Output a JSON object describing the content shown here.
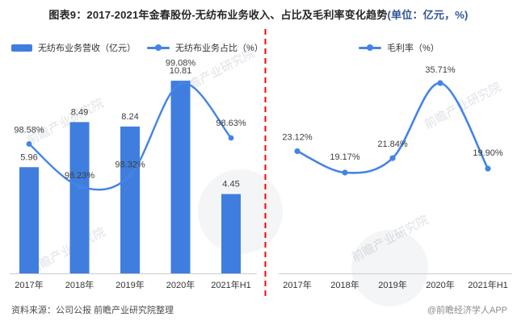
{
  "title": {
    "text": "图表9：2017-2021年金春股份-无纺布业务收入、占比及毛利率变化趋势",
    "unit_suffix": "(单位：亿元，%)"
  },
  "legend": {
    "revenue": "无纺布业务营收（亿元）",
    "share": "无纺布业务占比（%）",
    "margin": "毛利率（%）"
  },
  "footer": {
    "source": "资料来源：公司公报 前瞻产业研究院整理",
    "credit": "@前瞻经济学人APP"
  },
  "watermark": {
    "text": "前瞻产业研究院"
  },
  "colors": {
    "bar": "#3F7EDE",
    "line": "#4384E6",
    "divider": "#FE0000",
    "axis": "#CCCCCC",
    "label": "#3D3D3D",
    "tick": "#333333",
    "title": "#262626",
    "unit": "#2F5496"
  },
  "chart_data": [
    {
      "type": "bar",
      "title": "无纺布业务收入及占比",
      "categories": [
        "2017年",
        "2018年",
        "2019年",
        "2020年",
        "2021年H1"
      ],
      "series": [
        {
          "name": "无纺布业务营收（亿元）",
          "type": "bar",
          "values": [
            5.96,
            8.49,
            8.24,
            10.81,
            4.45
          ],
          "labels": [
            "5.96",
            "8.49",
            "8.24",
            "10.81",
            "4.45"
          ]
        },
        {
          "name": "无纺布业务占比（%）",
          "type": "line",
          "values": [
            98.58,
            98.23,
            98.32,
            99.08,
            98.63
          ],
          "labels": [
            "98.58%",
            "98.23%",
            "98.32%",
            "99.08%",
            "98.63%"
          ]
        }
      ],
      "xlabel": "",
      "ylabel": "",
      "ylim": [
        0,
        12
      ],
      "y2lim": [
        97.5,
        99.5
      ],
      "grid": false,
      "legend_position": "top"
    },
    {
      "type": "line",
      "title": "毛利率变化趋势",
      "categories": [
        "2017年",
        "2018年",
        "2019年",
        "2020年",
        "2021年H1"
      ],
      "series": [
        {
          "name": "毛利率（%）",
          "type": "line",
          "values": [
            23.12,
            19.17,
            21.84,
            35.71,
            19.9
          ],
          "labels": [
            "23.12%",
            "19.17%",
            "21.84%",
            "35.71%",
            "19.90%"
          ]
        }
      ],
      "xlabel": "",
      "ylabel": "",
      "ylim": [
        10,
        40
      ],
      "grid": false,
      "legend_position": "top"
    }
  ]
}
